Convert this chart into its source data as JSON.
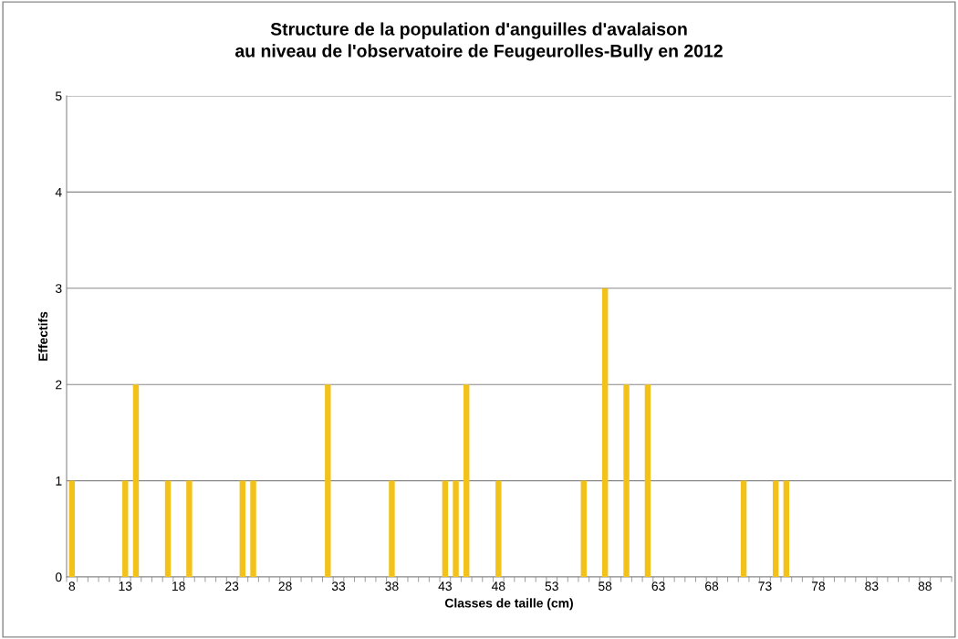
{
  "chart_data": {
    "type": "bar",
    "title": "Structure de la population d'anguilles d'avalaison\nau niveau de l'observatoire de Feugeurolles-Bully en 2012",
    "xlabel": "Classes de taille (cm)",
    "ylabel": "Effectifs",
    "categories": [
      "8",
      null,
      null,
      null,
      null,
      "13",
      null,
      null,
      null,
      null,
      "18",
      null,
      null,
      null,
      null,
      "23",
      null,
      null,
      null,
      null,
      "28",
      null,
      null,
      null,
      null,
      "33",
      null,
      null,
      null,
      null,
      "38",
      null,
      null,
      null,
      null,
      "43",
      null,
      null,
      null,
      null,
      "48",
      null,
      null,
      null,
      null,
      "53",
      null,
      null,
      null,
      null,
      "58",
      null,
      null,
      null,
      null,
      "63",
      null,
      null,
      null,
      null,
      "68",
      null,
      null,
      null,
      null,
      "73",
      null,
      null,
      null,
      null,
      "78",
      null,
      null,
      null,
      null,
      "83",
      null,
      null,
      null,
      null,
      "88",
      null,
      null
    ],
    "values": [
      1,
      0,
      0,
      0,
      0,
      1,
      2,
      0,
      0,
      1,
      0,
      1,
      0,
      0,
      0,
      0,
      1,
      1,
      0,
      0,
      0,
      0,
      0,
      0,
      2,
      0,
      0,
      0,
      0,
      0,
      1,
      0,
      0,
      0,
      0,
      1,
      1,
      2,
      0,
      0,
      1,
      0,
      0,
      0,
      0,
      0,
      0,
      0,
      1,
      0,
      3,
      0,
      2,
      0,
      2,
      0,
      0,
      0,
      0,
      0,
      0,
      0,
      0,
      1,
      0,
      0,
      1,
      1,
      0,
      0,
      0,
      0,
      0,
      0,
      0,
      0,
      0,
      0,
      0,
      0,
      0,
      0,
      0
    ],
    "color": "#f2c21a",
    "ylim": [
      0,
      5
    ],
    "yticks": [
      0,
      1,
      2,
      3,
      4,
      5
    ],
    "grid": "y"
  }
}
